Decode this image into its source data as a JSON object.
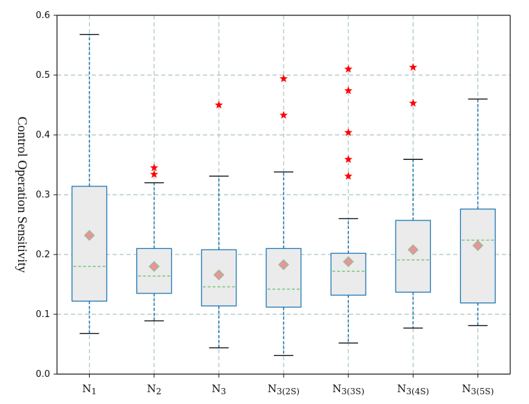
{
  "chart_data": {
    "type": "box",
    "ylabel": "Control Operation Sensitivity",
    "ylim": [
      0.0,
      0.6
    ],
    "yticks": [
      "0.0",
      "0.1",
      "0.2",
      "0.3",
      "0.4",
      "0.5",
      "0.6"
    ],
    "grid": true,
    "mean_marker": "diamond",
    "colors": {
      "box_edge": "#1f77b4",
      "box_fill": "#ebebeb",
      "whisker": "#1f77b4",
      "cap": "#111111",
      "median": "#77c877",
      "mean": "#e8949a",
      "outlier": "#ff0000",
      "grid": "#a9c2c2"
    },
    "categories": [
      "N1",
      "N2",
      "N3",
      "N3(2S)",
      "N3(3S)",
      "N3(4S)",
      "N3(5S)"
    ],
    "boxes": [
      {
        "label": "N1",
        "whisker_low": 0.068,
        "q1": 0.122,
        "median": 0.18,
        "q3": 0.314,
        "whisker_high": 0.568,
        "mean": 0.232,
        "outliers": []
      },
      {
        "label": "N2",
        "whisker_low": 0.089,
        "q1": 0.135,
        "median": 0.164,
        "q3": 0.21,
        "whisker_high": 0.32,
        "mean": 0.18,
        "outliers": [
          0.345,
          0.334
        ]
      },
      {
        "label": "N3",
        "whisker_low": 0.044,
        "q1": 0.114,
        "median": 0.146,
        "q3": 0.208,
        "whisker_high": 0.331,
        "mean": 0.166,
        "outliers": [
          0.45
        ]
      },
      {
        "label": "N3(2S)",
        "whisker_low": 0.031,
        "q1": 0.112,
        "median": 0.142,
        "q3": 0.21,
        "whisker_high": 0.338,
        "mean": 0.183,
        "outliers": [
          0.494,
          0.433
        ]
      },
      {
        "label": "N3(3S)",
        "whisker_low": 0.052,
        "q1": 0.132,
        "median": 0.172,
        "q3": 0.202,
        "whisker_high": 0.26,
        "mean": 0.188,
        "outliers": [
          0.51,
          0.474,
          0.404,
          0.359,
          0.331
        ]
      },
      {
        "label": "N3(4S)",
        "whisker_low": 0.077,
        "q1": 0.137,
        "median": 0.191,
        "q3": 0.257,
        "whisker_high": 0.359,
        "mean": 0.208,
        "outliers": [
          0.513,
          0.453
        ]
      },
      {
        "label": "N3(5S)",
        "whisker_low": 0.081,
        "q1": 0.119,
        "median": 0.224,
        "q3": 0.276,
        "whisker_high": 0.46,
        "mean": 0.215,
        "outliers": []
      }
    ]
  }
}
